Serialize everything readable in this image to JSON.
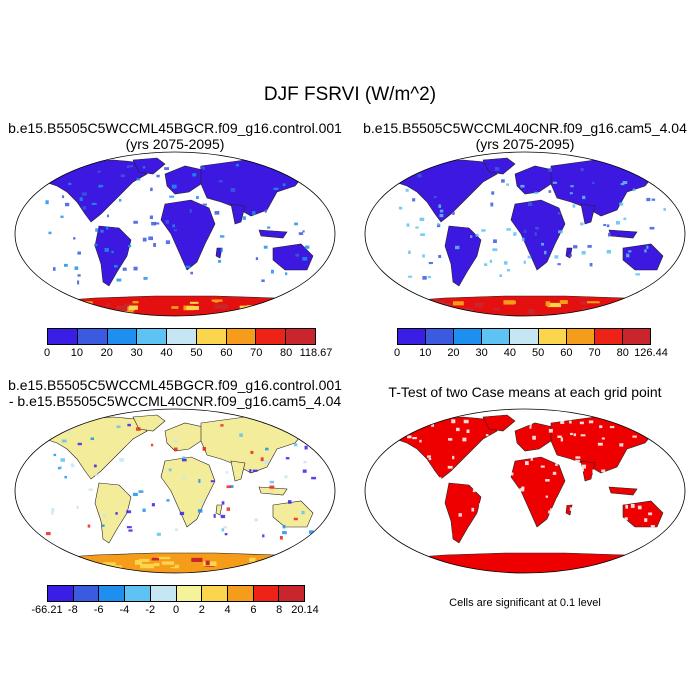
{
  "title": "DJF FSRVI (W/m^2)",
  "colors": {
    "ocean": "#ffffff",
    "land_fill": "#3d18e0",
    "land_fill2": "#3d18e0",
    "antarctica": "#e41010",
    "diff_land": "#f3ec9a",
    "ttest_land": "#ee0000"
  },
  "panels": [
    {
      "title_line1": "b.e15.B5505C5WCCML45BGCR.f09_g16.control.001",
      "title_line2": "(yrs 2075-2095)",
      "colorbar": {
        "colors": [
          "#3b1ee6",
          "#3a5ae0",
          "#1f8fef",
          "#5ec2f2",
          "#c6e6f4",
          "#fbd54d",
          "#f59c1a",
          "#ec2316",
          "#c9252c"
        ],
        "labels": [
          "0",
          "10",
          "20",
          "30",
          "40",
          "50",
          "60",
          "70",
          "80",
          "118.67"
        ]
      }
    },
    {
      "title_line1": "b.e15.B5505C5WCCML40CNR.f09_g16.cam5_4.04",
      "title_line2": "(yrs 2075-2095)",
      "colorbar": {
        "colors": [
          "#3b1ee6",
          "#3a5ae0",
          "#1f8fef",
          "#5ec2f2",
          "#c6e6f4",
          "#fbd54d",
          "#f59c1a",
          "#ec2316",
          "#c9252c"
        ],
        "labels": [
          "0",
          "10",
          "20",
          "30",
          "40",
          "50",
          "60",
          "70",
          "80",
          "126.44"
        ]
      }
    },
    {
      "title_line1": "b.e15.B5505C5WCCML45BGCR.f09_g16.control.001",
      "title_line2": "- b.e15.B5505C5WCCML40CNR.f09_g16.cam5_4.04",
      "colorbar": {
        "colors": [
          "#3b1ee6",
          "#3a5ae0",
          "#1f8fef",
          "#5ec2f2",
          "#c6e6f4",
          "#f6f29a",
          "#fbd54d",
          "#f59c1a",
          "#ec2316",
          "#c9252c"
        ],
        "labels": [
          "-66.21",
          "-8",
          "-6",
          "-4",
          "-2",
          "0",
          "2",
          "4",
          "6",
          "8",
          "20.14"
        ]
      }
    },
    {
      "title_line1": "T-Test of two Case means at each grid point",
      "note": "Cells are significant at 0.1 level"
    }
  ]
}
